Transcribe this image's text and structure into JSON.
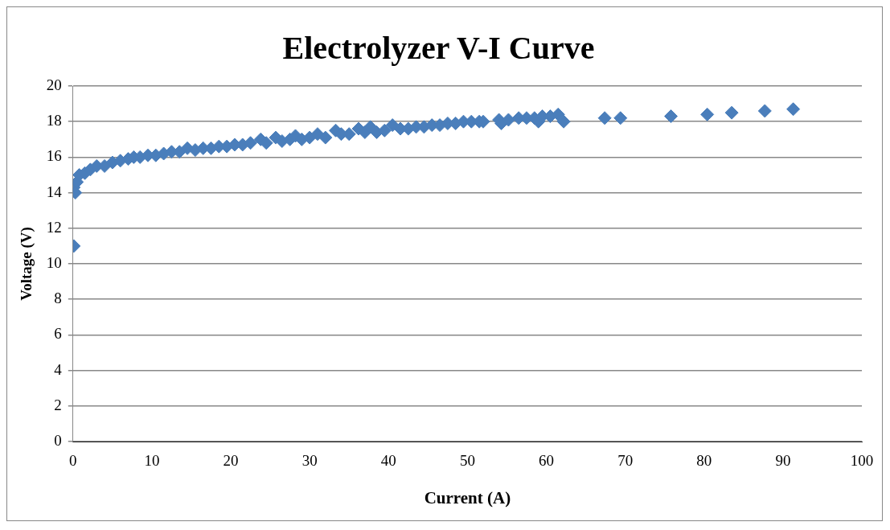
{
  "chart_data": {
    "type": "scatter",
    "title": "Electrolyzer V-I Curve",
    "xlabel": "Current (A)",
    "ylabel": "Voltage (V)",
    "xlim": [
      0,
      100
    ],
    "xticks": [
      0,
      10,
      20,
      30,
      40,
      50,
      60,
      70,
      80,
      90,
      100
    ],
    "ylim": [
      0,
      20
    ],
    "yticks": [
      0,
      2,
      4,
      6,
      8,
      10,
      12,
      14,
      16,
      18,
      20
    ],
    "grid": "y",
    "legend": false,
    "marker": "diamond",
    "series": [
      {
        "color": "#4a7ebb",
        "x": [
          0.1,
          0.1,
          0.3,
          0.5,
          0.8,
          1.5,
          2.2,
          3,
          4,
          5,
          6,
          7,
          7.7,
          8.5,
          9.5,
          10.5,
          11.5,
          12.5,
          13.5,
          14.5,
          15.5,
          16.5,
          17.5,
          18.5,
          19.5,
          20.5,
          21.5,
          22.5,
          23.8,
          24.5,
          25.7,
          26.5,
          27.5,
          28.2,
          29,
          30,
          31,
          32,
          33.3,
          34,
          35,
          36.2,
          37,
          37.7,
          38.5,
          39.5,
          40.5,
          41.5,
          42.5,
          43.5,
          44.5,
          45.5,
          46.5,
          47.5,
          48.5,
          49.5,
          50.5,
          51.5,
          52,
          54,
          54.3,
          55.2,
          56.5,
          57.5,
          58.5,
          59,
          59.5,
          60.5,
          61.5,
          62.2,
          67.4,
          69.4,
          75.8,
          80.4,
          83.5,
          87.7,
          91.3
        ],
        "values": [
          11,
          14.3,
          14,
          14.6,
          15,
          15.1,
          15.3,
          15.5,
          15.5,
          15.7,
          15.8,
          15.9,
          16,
          16,
          16.1,
          16.1,
          16.2,
          16.3,
          16.3,
          16.5,
          16.4,
          16.5,
          16.5,
          16.6,
          16.6,
          16.7,
          16.7,
          16.8,
          17,
          16.8,
          17.1,
          16.9,
          17,
          17.2,
          17,
          17.1,
          17.3,
          17.1,
          17.5,
          17.3,
          17.3,
          17.6,
          17.4,
          17.7,
          17.4,
          17.5,
          17.8,
          17.6,
          17.6,
          17.7,
          17.7,
          17.8,
          17.8,
          17.9,
          17.9,
          18,
          18,
          18,
          18,
          18.1,
          17.9,
          18.1,
          18.2,
          18.2,
          18.2,
          18,
          18.3,
          18.3,
          18.4,
          18,
          18.2,
          18.2,
          18.3,
          18.4,
          18.5,
          18.6,
          18.7
        ]
      }
    ]
  }
}
